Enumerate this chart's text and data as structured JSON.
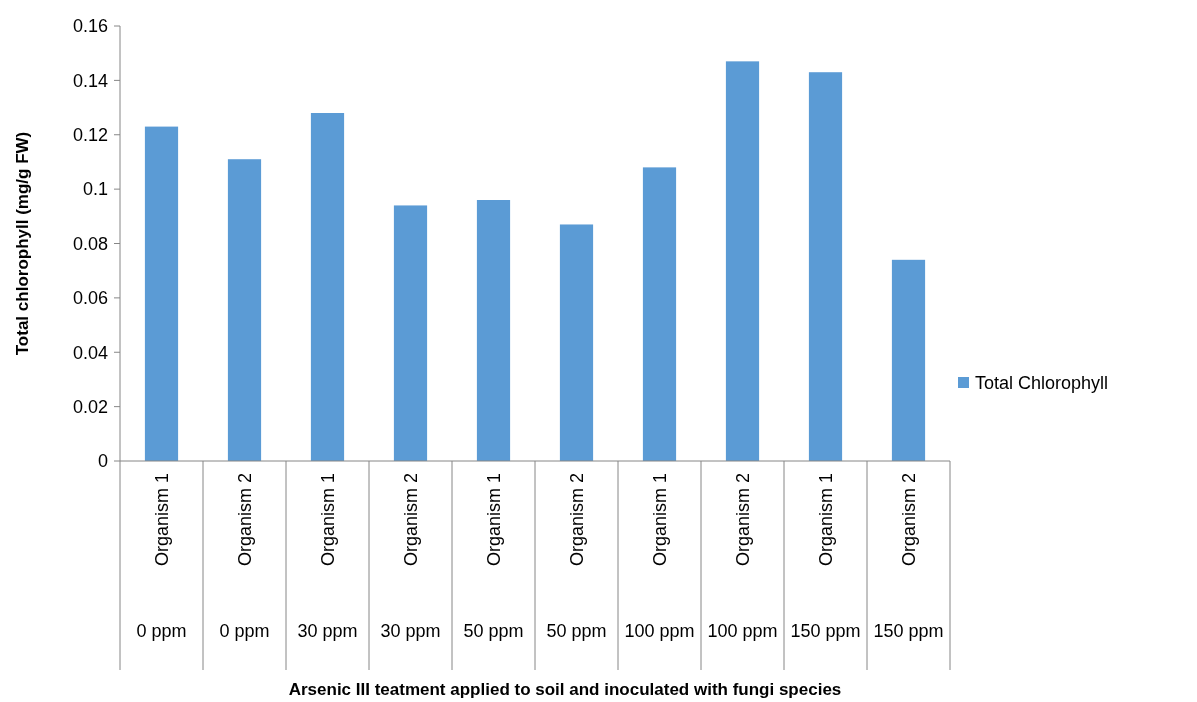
{
  "chart_data": {
    "type": "bar",
    "annotations": [
      "Arsenic III  teatment applied to soil and inoculated with fungi species"
    ],
    "ylabel": "Total chlorophyll (mg/g FW)",
    "categories": [
      "Organism 1\n0 ppm",
      "Organism 2\n0 ppm",
      "Organism 1\n30 ppm",
      "Organism 2\n30 ppm",
      "Organism 1\n50 ppm",
      "Organism 2\n50 ppm",
      "Organism 1\n100 ppm",
      "Organism 2\n100 ppm",
      "Organism 1\n150 ppm",
      "Organism 2\n150 ppm"
    ],
    "series": [
      {
        "name": "Total Chlorophyll",
        "color": "#5b9bd5",
        "values": [
          0.123,
          0.111,
          0.128,
          0.094,
          0.096,
          0.087,
          0.108,
          0.147,
          0.143,
          0.074
        ]
      }
    ],
    "ylim": [
      0,
      0.16
    ],
    "yticks": [
      0,
      0.02,
      0.04,
      0.06,
      0.08,
      0.1,
      0.12,
      0.14,
      0.16
    ],
    "grid": false,
    "legend": "right"
  }
}
